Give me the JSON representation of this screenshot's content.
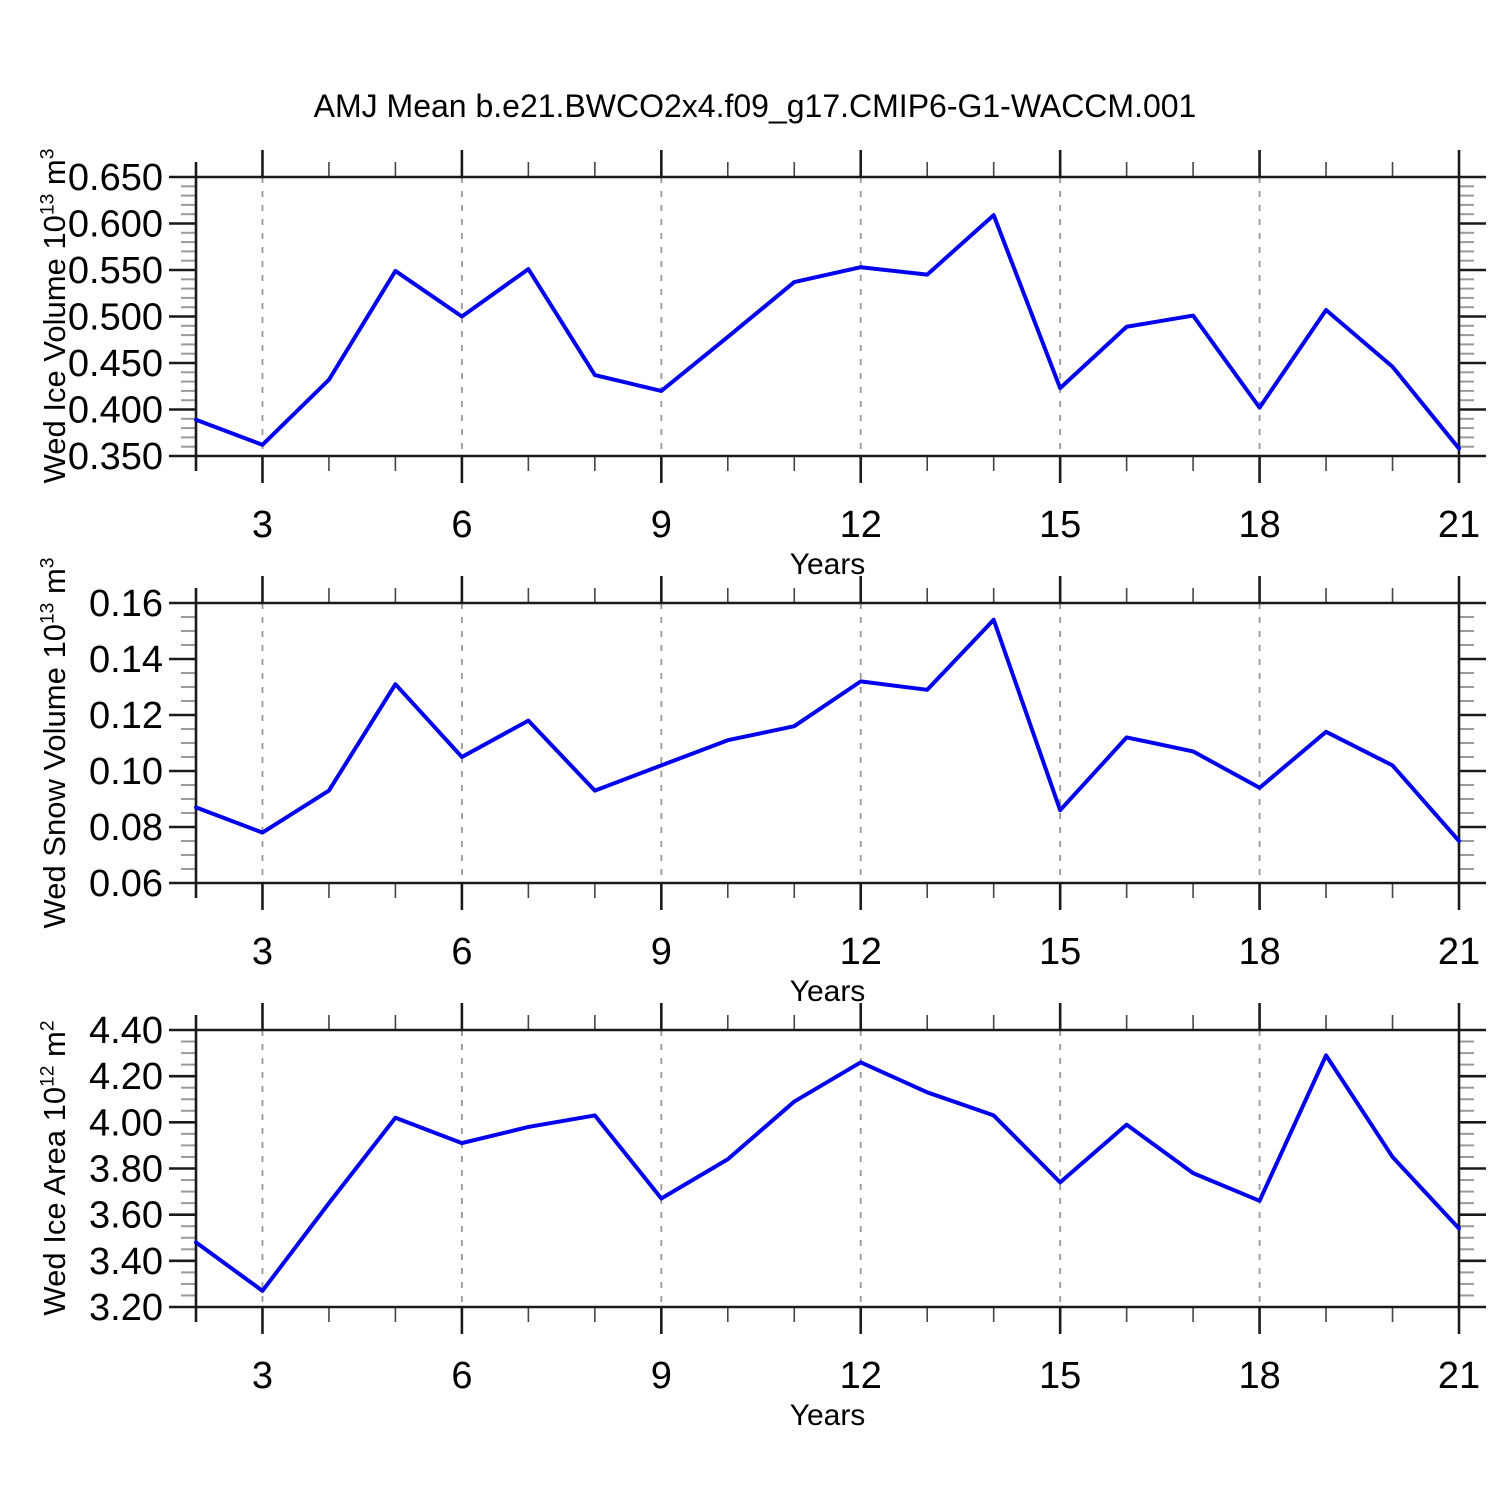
{
  "title": "AMJ Mean b.e21.BWCO2x4.f09_g17.CMIP6-G1-WACCM.001",
  "line_color": "#0000ee",
  "chart_data": [
    {
      "type": "line",
      "ylabel_name": "Wed Ice Volume",
      "unit_base": "10",
      "unit_exp": "13",
      "unit_symbol": "m",
      "unit_symbol_exp": "3",
      "xlabel": "Years",
      "xlim": [
        2,
        21
      ],
      "xticks": [
        3,
        6,
        9,
        12,
        15,
        18,
        21
      ],
      "xtick_labels": [
        "3",
        "6",
        "9",
        "12",
        "15",
        "18",
        "21"
      ],
      "xminor_step": 1,
      "grid_x": [
        3,
        6,
        9,
        12,
        15,
        18
      ],
      "ylim": [
        0.35,
        0.65
      ],
      "yticks": [
        0.35,
        0.4,
        0.45,
        0.5,
        0.55,
        0.6,
        0.65
      ],
      "ytick_labels": [
        "0.350",
        "0.400",
        "0.450",
        "0.500",
        "0.550",
        "0.600",
        "0.650"
      ],
      "yminor_step": 0.01,
      "grid": "vertical-dashed",
      "x": [
        2,
        3,
        4,
        5,
        6,
        7,
        8,
        9,
        10,
        11,
        12,
        13,
        14,
        15,
        16,
        17,
        18,
        19,
        20,
        21
      ],
      "values": [
        0.389,
        0.362,
        0.432,
        0.549,
        0.5,
        0.551,
        0.437,
        0.42,
        0.478,
        0.537,
        0.553,
        0.545,
        0.609,
        0.423,
        0.489,
        0.501,
        0.402,
        0.507,
        0.446,
        0.358
      ]
    },
    {
      "type": "line",
      "ylabel_name": "Wed Snow Volume",
      "unit_base": "10",
      "unit_exp": "13",
      "unit_symbol": "m",
      "unit_symbol_exp": "3",
      "xlabel": "Years",
      "xlim": [
        2,
        21
      ],
      "xticks": [
        3,
        6,
        9,
        12,
        15,
        18,
        21
      ],
      "xtick_labels": [
        "3",
        "6",
        "9",
        "12",
        "15",
        "18",
        "21"
      ],
      "xminor_step": 1,
      "grid_x": [
        3,
        6,
        9,
        12,
        15,
        18
      ],
      "ylim": [
        0.06,
        0.16
      ],
      "yticks": [
        0.06,
        0.08,
        0.1,
        0.12,
        0.14,
        0.16
      ],
      "ytick_labels": [
        "0.06",
        "0.08",
        "0.10",
        "0.12",
        "0.14",
        "0.16"
      ],
      "yminor_step": 0.005,
      "grid": "vertical-dashed",
      "x": [
        2,
        3,
        4,
        5,
        6,
        7,
        8,
        9,
        10,
        11,
        12,
        13,
        14,
        15,
        16,
        17,
        18,
        19,
        20,
        21
      ],
      "values": [
        0.087,
        0.078,
        0.093,
        0.131,
        0.105,
        0.118,
        0.093,
        0.102,
        0.111,
        0.116,
        0.132,
        0.129,
        0.154,
        0.086,
        0.112,
        0.107,
        0.094,
        0.114,
        0.102,
        0.075
      ]
    },
    {
      "type": "line",
      "ylabel_name": "Wed Ice Area",
      "unit_base": "10",
      "unit_exp": "12",
      "unit_symbol": "m",
      "unit_symbol_exp": "2",
      "xlabel": "Years",
      "xlim": [
        2,
        21
      ],
      "xticks": [
        3,
        6,
        9,
        12,
        15,
        18,
        21
      ],
      "xtick_labels": [
        "3",
        "6",
        "9",
        "12",
        "15",
        "18",
        "21"
      ],
      "xminor_step": 1,
      "grid_x": [
        3,
        6,
        9,
        12,
        15,
        18
      ],
      "ylim": [
        3.2,
        4.4
      ],
      "yticks": [
        3.2,
        3.4,
        3.6,
        3.8,
        4.0,
        4.2,
        4.4
      ],
      "ytick_labels": [
        "3.20",
        "3.40",
        "3.60",
        "3.80",
        "4.00",
        "4.20",
        "4.40"
      ],
      "yminor_step": 0.05,
      "grid": "vertical-dashed",
      "x": [
        2,
        3,
        4,
        5,
        6,
        7,
        8,
        9,
        10,
        11,
        12,
        13,
        14,
        15,
        16,
        17,
        18,
        19,
        20,
        21
      ],
      "values": [
        3.48,
        3.27,
        3.65,
        4.02,
        3.91,
        3.98,
        4.03,
        3.67,
        3.84,
        4.09,
        4.26,
        4.13,
        4.03,
        3.74,
        3.99,
        3.78,
        3.66,
        4.29,
        3.85,
        3.54
      ]
    }
  ]
}
